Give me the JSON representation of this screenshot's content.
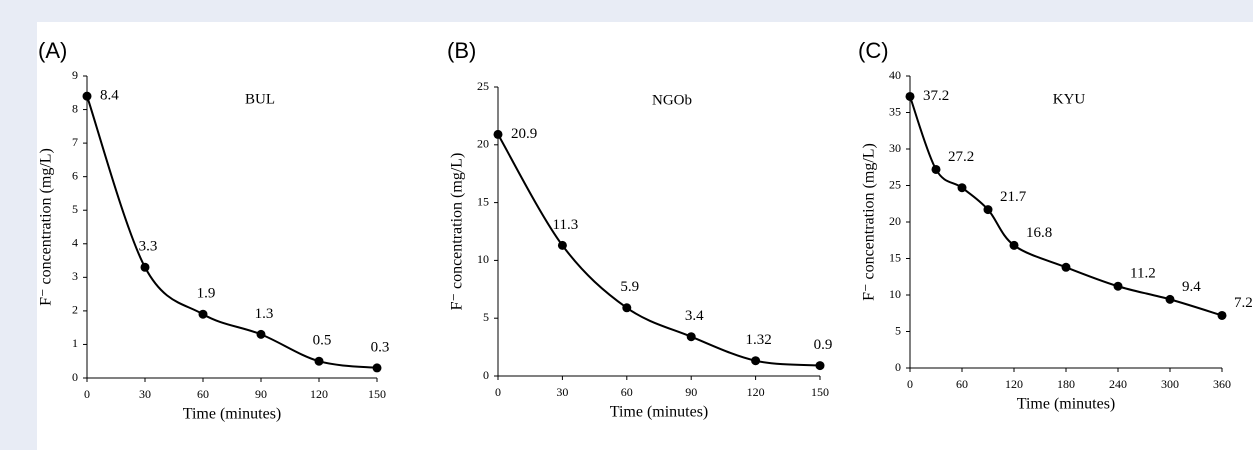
{
  "chart_data": [
    {
      "type": "line",
      "panel_label": "(A)",
      "title": "BUL",
      "xlabel": "Time (minutes)",
      "ylabel": "F⁻ concentration (mg/L)",
      "x": [
        0,
        30,
        60,
        90,
        120,
        150
      ],
      "values": [
        8.4,
        3.3,
        1.9,
        1.3,
        0.5,
        0.3
      ],
      "color": "#000000",
      "xlim": [
        0,
        150
      ],
      "xticks": [
        0,
        30,
        60,
        90,
        120,
        150
      ],
      "ylim": [
        0,
        9
      ],
      "yticks": [
        0,
        1,
        2,
        3,
        4,
        5,
        6,
        7,
        8,
        9
      ]
    },
    {
      "type": "line",
      "panel_label": "(B)",
      "title": "NGOb",
      "xlabel": "Time (minutes)",
      "ylabel": "F⁻ concentration (mg/L)",
      "x": [
        0,
        30,
        60,
        90,
        120,
        150
      ],
      "values": [
        20.9,
        11.3,
        5.9,
        3.4,
        1.32,
        0.9
      ],
      "color": "#000000",
      "xlim": [
        0,
        150
      ],
      "xticks": [
        0,
        30,
        60,
        90,
        120,
        150
      ],
      "ylim": [
        0,
        25
      ],
      "yticks": [
        0,
        5,
        10,
        15,
        20,
        25
      ]
    },
    {
      "type": "line",
      "panel_label": "(C)",
      "title": "KYU",
      "xlabel": "Time (minutes)",
      "ylabel": "F⁻ concentration (mg/L)",
      "x": [
        0,
        30,
        60,
        90,
        120,
        180,
        240,
        300,
        360
      ],
      "values": [
        37.2,
        27.2,
        24.7,
        21.7,
        16.8,
        13.8,
        11.2,
        9.4,
        7.2
      ],
      "value_labels": [
        "37.2",
        "27.2",
        null,
        "21.7",
        "16.8",
        null,
        "11.2",
        "9.4",
        "7.2"
      ],
      "color": "#000000",
      "xlim": [
        0,
        360
      ],
      "xticks": [
        0,
        60,
        120,
        180,
        240,
        300,
        360
      ],
      "ylim": [
        0,
        40
      ],
      "yticks": [
        0,
        5,
        10,
        15,
        20,
        25,
        30,
        35,
        40
      ]
    }
  ]
}
